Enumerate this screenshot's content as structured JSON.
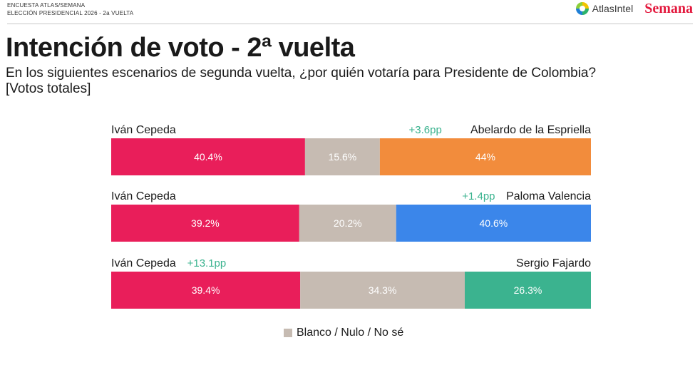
{
  "header": {
    "survey": "ENCUESTA ATLAS/SEMANA",
    "election": "ELECCIÓN PRESIDENCIAL 2026 - 2a VUELTA",
    "logo_atlas": "AtlasIntel",
    "logo_semana": "Semana"
  },
  "title": "Intención de voto - 2ª vuelta",
  "subtitle_line1": "En los siguientes escenarios de segunda vuelta, ¿por quién votaría para Presidente de Colombia?",
  "subtitle_line2": "[Votos totales]",
  "legend": {
    "label": "Blanco / Nulo / No sé",
    "color": "#c6bbb2"
  },
  "chart_data": {
    "type": "bar",
    "orientation": "horizontal-stacked-100",
    "segment_colors": {
      "left": "#e91e5a",
      "blank": "#c6bbb2",
      "lead_color": "#3bb38f"
    },
    "scenarios": [
      {
        "left_name": "Iván Cepeda",
        "left_value": 40.4,
        "left_label": "40.4%",
        "blank_value": 15.6,
        "blank_label": "15.6%",
        "right_name": "Abelardo de la Espriella",
        "right_value": 44,
        "right_label": "44%",
        "right_color": "#f28c3c",
        "lead": "+3.6pp",
        "lead_side": "right"
      },
      {
        "left_name": "Iván Cepeda",
        "left_value": 39.2,
        "left_label": "39.2%",
        "blank_value": 20.2,
        "blank_label": "20.2%",
        "right_name": "Paloma Valencia",
        "right_value": 40.6,
        "right_label": "40.6%",
        "right_color": "#3b86ea",
        "lead": "+1.4pp",
        "lead_side": "right"
      },
      {
        "left_name": "Iván Cepeda",
        "left_value": 39.4,
        "left_label": "39.4%",
        "blank_value": 34.3,
        "blank_label": "34.3%",
        "right_name": "Sergio Fajardo",
        "right_value": 26.3,
        "right_label": "26.3%",
        "right_color": "#3bb38f",
        "lead": "+13.1pp",
        "lead_side": "left"
      }
    ]
  }
}
